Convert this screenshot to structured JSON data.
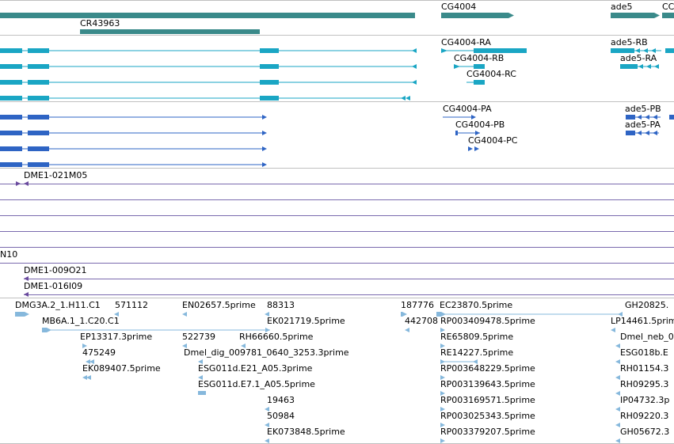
{
  "colors": {
    "gene": "#3a8a8a",
    "transcript": "#1aa6c4",
    "cds": "#2e64c4",
    "clone": "#6a4a9e",
    "est": "#86b8dc",
    "divider": "#c0c0c0",
    "cloneLine": "#7a6aae"
  },
  "genes": {
    "cr43963": "CR43963",
    "cg4004": "CG4004",
    "ade5": "ade5",
    "cut": "CC"
  },
  "transcripts": {
    "cg4004_ra": "CG4004-RA",
    "cg4004_rb": "CG4004-RB",
    "cg4004_rc": "CG4004-RC",
    "ade5_rb": "ade5-RB",
    "ade5_ra": "ade5-RA"
  },
  "proteins": {
    "cg4004_pa": "CG4004-PA",
    "cg4004_pb": "CG4004-PB",
    "cg4004_pc": "CG4004-PC",
    "ade5_pb": "ade5-PB",
    "ade5_pa": "ade5-PA"
  },
  "clones": {
    "c021m05": "DME1-021M05",
    "n10": "N10",
    "c009o21": "DME1-009O21",
    "c016i09": "DME1-016I09"
  },
  "ests": [
    "DMG3A.2_1.H11.C1",
    "571112",
    "EN02657.5prime",
    "88313",
    "187776",
    "EC23870.5prime",
    "GH20825.",
    "MB6A.1_1.C20.C1",
    "EK021719.5prime",
    "442708",
    "RP003409478.5prime",
    "LP14461.5prime",
    "EP13317.3prime",
    "522739",
    "RH66660.5prime",
    "RE65809.5prime",
    "Dmel_neb_0",
    "475249",
    "Dmel_dig_009781_0640_3253.3prime",
    "RE14227.5prime",
    "ESG018b.E",
    "EK089407.5prime",
    "ESG011d.E21_A05.3prime",
    "RP003648229.5prime",
    "RH01154.3",
    "ESG011d.E7.1_A05.5prime",
    "RP003139643.5prime",
    "RH09295.3",
    "19463",
    "RP003169571.5prime",
    "IP04732.3p",
    "50984",
    "RP003025343.5prime",
    "RH09220.3",
    "EK073848.5prime",
    "RP003379207.5prime",
    "GH05672.3"
  ]
}
